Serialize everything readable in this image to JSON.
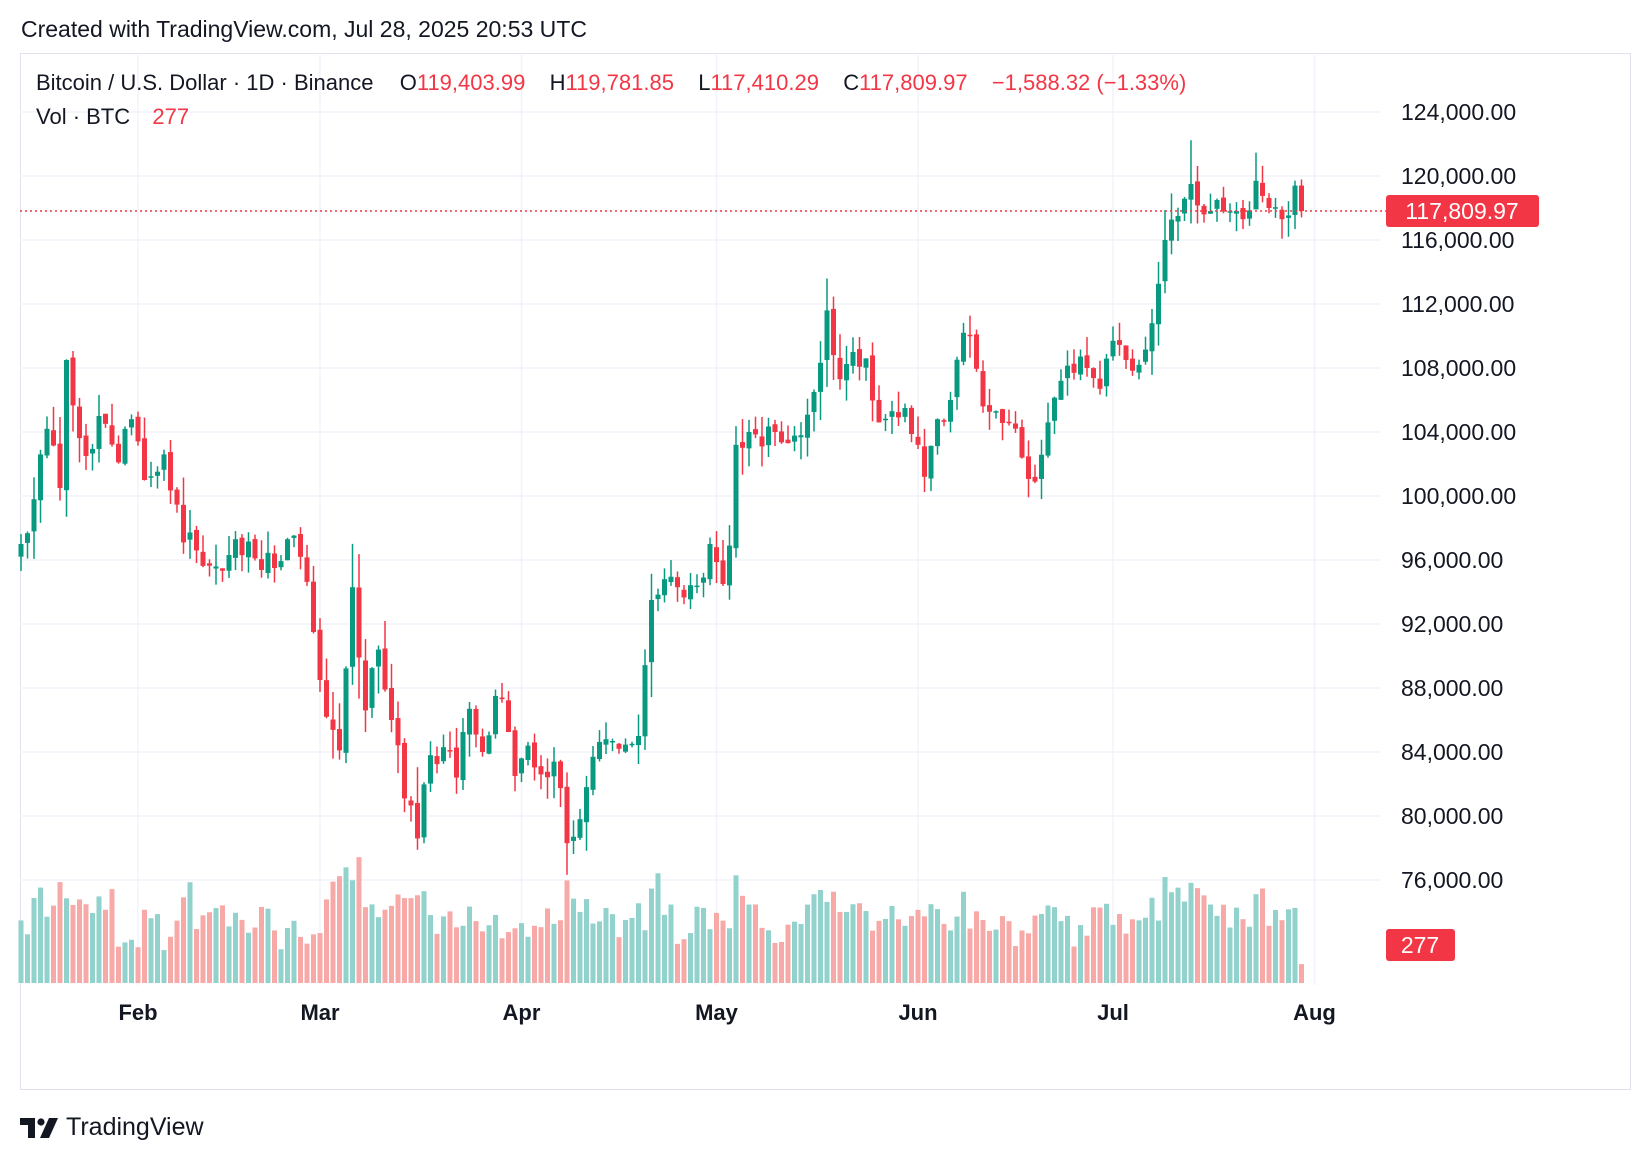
{
  "header": {
    "created_text": "Created with TradingView.com, Jul 28, 2025 20:53 UTC"
  },
  "legend": {
    "symbol": "Bitcoin / U.S. Dollar · 1D · Binance",
    "open_label": "O",
    "open": "119,403.99",
    "high_label": "H",
    "high": "119,781.85",
    "low_label": "L",
    "low": "117,410.29",
    "close_label": "C",
    "close": "117,809.97",
    "change": "−1,588.32 (−1.33%)",
    "vol_label": "Vol · BTC",
    "vol_value": "277"
  },
  "brand": {
    "name": "TradingView",
    "logo_icon": "tradingview-logo-icon"
  },
  "colors": {
    "up": "#089981",
    "down": "#f23645",
    "up_vol": "#92d2cc",
    "down_vol": "#f7a9a7",
    "grid": "#f0f3fa",
    "text": "#131722"
  },
  "chart_data": {
    "type": "candlestick",
    "title": "Bitcoin / U.S. Dollar · 1D · Binance",
    "ylim": [
      72000,
      125000
    ],
    "y_ticks": [
      76000,
      80000,
      84000,
      88000,
      92000,
      96000,
      100000,
      104000,
      108000,
      112000,
      116000,
      120000,
      124000
    ],
    "y_tick_labels": [
      "76,000.00",
      "80,000.00",
      "84,000.00",
      "88,000.00",
      "92,000.00",
      "96,000.00",
      "100,000.00",
      "104,000.00",
      "108,000.00",
      "112,000.00",
      "116,000.00",
      "120,000.00",
      "124,000.00"
    ],
    "x_range": [
      "2025-01-14",
      "2025-08-01"
    ],
    "x_ticks": [
      {
        "label": "Feb",
        "day": 18
      },
      {
        "label": "Mar",
        "day": 46
      },
      {
        "label": "Apr",
        "day": 77
      },
      {
        "label": "May",
        "day": 107
      },
      {
        "label": "Jun",
        "day": 138
      },
      {
        "label": "Jul",
        "day": 168
      },
      {
        "label": "Aug",
        "day": 199
      }
    ],
    "last_price": 117809.97,
    "last_price_label": "117,809.97",
    "last_volume_label": "277",
    "volume_max_btc": 2200,
    "anchors": [
      [
        0,
        97000,
        2
      ],
      [
        2,
        99800,
        3
      ],
      [
        4,
        104200,
        3
      ],
      [
        6,
        100500,
        4
      ],
      [
        7,
        108500,
        3
      ],
      [
        10,
        102500,
        2
      ],
      [
        12,
        105000,
        3
      ],
      [
        15,
        102100,
        1
      ],
      [
        17,
        104800,
        1
      ],
      [
        19,
        101000,
        2
      ],
      [
        22,
        102600,
        1
      ],
      [
        25,
        97100,
        4
      ],
      [
        27,
        96600,
        2
      ],
      [
        30,
        95600,
        2
      ],
      [
        33,
        97300,
        2
      ],
      [
        36,
        96100,
        2
      ],
      [
        39,
        95500,
        1
      ],
      [
        41,
        97300,
        2
      ],
      [
        43,
        96200,
        1
      ],
      [
        45,
        91500,
        2
      ],
      [
        47,
        86200,
        4
      ],
      [
        49,
        84100,
        5
      ],
      [
        51,
        94300,
        5
      ],
      [
        53,
        86600,
        3
      ],
      [
        55,
        90400,
        3
      ],
      [
        57,
        86000,
        3
      ],
      [
        59,
        81100,
        3
      ],
      [
        61,
        78600,
        4
      ],
      [
        63,
        83800,
        2
      ],
      [
        65,
        84300,
        2
      ],
      [
        67,
        82400,
        2
      ],
      [
        69,
        86700,
        2
      ],
      [
        71,
        84000,
        1
      ],
      [
        73,
        87500,
        2
      ],
      [
        74,
        87300,
        1
      ],
      [
        76,
        82500,
        2
      ],
      [
        78,
        84400,
        1
      ],
      [
        80,
        82600,
        2
      ],
      [
        82,
        83400,
        2
      ],
      [
        84,
        78300,
        4
      ],
      [
        86,
        79800,
        3
      ],
      [
        88,
        83700,
        2
      ],
      [
        90,
        84800,
        2
      ],
      [
        92,
        84200,
        1
      ],
      [
        95,
        85000,
        2
      ],
      [
        97,
        93500,
        4
      ],
      [
        99,
        94800,
        2
      ],
      [
        101,
        94300,
        1
      ],
      [
        104,
        94400,
        2
      ],
      [
        106,
        97000,
        2
      ],
      [
        108,
        94500,
        2
      ],
      [
        109,
        96900,
        2
      ],
      [
        110,
        103200,
        4
      ],
      [
        112,
        104000,
        2
      ],
      [
        114,
        103100,
        2
      ],
      [
        116,
        104000,
        1
      ],
      [
        118,
        103300,
        1
      ],
      [
        120,
        103800,
        2
      ],
      [
        122,
        106500,
        3
      ],
      [
        124,
        111600,
        4
      ],
      [
        126,
        107300,
        3
      ],
      [
        128,
        109000,
        2
      ],
      [
        130,
        108600,
        2
      ],
      [
        132,
        104600,
        2
      ],
      [
        134,
        105300,
        2
      ],
      [
        136,
        105500,
        2
      ],
      [
        138,
        103200,
        2
      ],
      [
        139,
        101200,
        3
      ],
      [
        141,
        104800,
        2
      ],
      [
        143,
        106000,
        2
      ],
      [
        145,
        110200,
        3
      ],
      [
        146,
        110000,
        2
      ],
      [
        148,
        105600,
        2
      ],
      [
        150,
        105300,
        2
      ],
      [
        152,
        104600,
        1
      ],
      [
        154,
        102400,
        2
      ],
      [
        156,
        100900,
        3
      ],
      [
        158,
        104600,
        2
      ],
      [
        160,
        107200,
        2
      ],
      [
        162,
        107700,
        1
      ],
      [
        164,
        108000,
        2
      ],
      [
        166,
        106700,
        2
      ],
      [
        168,
        109700,
        2
      ],
      [
        170,
        108500,
        1
      ],
      [
        172,
        108200,
        2
      ],
      [
        174,
        110800,
        3
      ],
      [
        176,
        116000,
        4
      ],
      [
        178,
        117500,
        3
      ],
      [
        180,
        119500,
        5
      ],
      [
        182,
        117600,
        3
      ],
      [
        184,
        118500,
        3
      ],
      [
        186,
        117800,
        2
      ],
      [
        188,
        117300,
        2
      ],
      [
        190,
        119700,
        3
      ],
      [
        192,
        118000,
        2
      ],
      [
        194,
        117300,
        2
      ],
      [
        196,
        119400,
        2
      ],
      [
        197,
        117810,
        1
      ]
    ]
  }
}
